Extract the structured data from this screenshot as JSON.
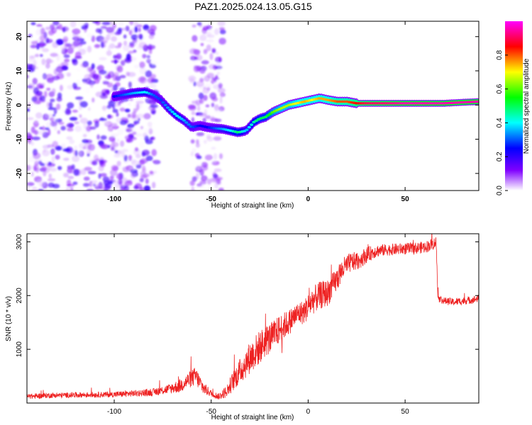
{
  "figure_title": "PAZ1.2025.024.13.05.G15",
  "chart_data": [
    {
      "type": "heatmap",
      "xlabel": "Height of straight line (km)",
      "ylabel": "Frequency (Hz)",
      "xlim": [
        -145,
        88
      ],
      "ylim": [
        -25,
        24.5
      ],
      "x_ticks": [
        -100,
        -50,
        0,
        50
      ],
      "x_tick_labels": [
        "-100",
        "-50",
        "0",
        "50"
      ],
      "y_ticks": [
        20,
        10,
        0,
        -10,
        -20
      ],
      "y_tick_labels": [
        "20",
        "10",
        "0",
        "-10",
        "-20"
      ],
      "colorbar": {
        "label": "Normalized spectral amplitude",
        "range": [
          0,
          1
        ],
        "ticks": [
          0.0,
          0.2,
          0.4,
          0.6,
          0.8
        ],
        "tick_labels": [
          "0.0",
          "0.2",
          "0.4",
          "0.6",
          "0.8"
        ],
        "colormap": [
          "#ffffff",
          "#8000ff",
          "#0000ff",
          "#00ffff",
          "#00ff00",
          "#ffff00",
          "#ff0000",
          "#ff00ff"
        ]
      },
      "ridge": {
        "x": [
          -100,
          -90,
          -84,
          -80,
          -76,
          -72,
          -68,
          -64,
          -60,
          -56,
          -52,
          -48,
          -44,
          -40,
          -36,
          -32,
          -28,
          -25,
          -22,
          -18,
          -14,
          -10,
          -6,
          -2,
          2,
          6,
          10,
          15,
          20,
          25,
          30,
          40,
          50,
          60,
          70,
          80,
          88
        ],
        "y": [
          2.5,
          3.5,
          3.8,
          3.0,
          1.5,
          -1.0,
          -3.0,
          -4.5,
          -6.5,
          -6.0,
          -6.5,
          -6.8,
          -7.0,
          -7.5,
          -8.0,
          -7.5,
          -5.0,
          -4.0,
          -3.5,
          -2.0,
          -1.0,
          0.0,
          0.5,
          1.0,
          1.5,
          2.0,
          1.5,
          1.0,
          1.0,
          0.5,
          0.5,
          0.5,
          0.5,
          0.5,
          0.5,
          0.8,
          1.0
        ],
        "amplitude": [
          0.25,
          0.35,
          0.4,
          0.3,
          0.28,
          0.35,
          0.4,
          0.35,
          0.3,
          0.25,
          0.25,
          0.3,
          0.35,
          0.4,
          0.5,
          0.35,
          0.45,
          0.5,
          0.5,
          0.6,
          0.65,
          0.65,
          0.7,
          0.75,
          0.7,
          0.75,
          0.75,
          0.8,
          0.8,
          0.85,
          0.9,
          0.92,
          0.95,
          0.95,
          0.95,
          0.95,
          0.95
        ]
      },
      "noise_regions": [
        {
          "x_range": [
            -145,
            -78
          ],
          "y_range": [
            -25,
            24.5
          ],
          "amplitude": 0.2
        },
        {
          "x_range": [
            -60,
            -44
          ],
          "y_range": [
            -25,
            24.5
          ],
          "amplitude": 0.15
        }
      ]
    },
    {
      "type": "line",
      "xlabel": "Height of straight line (km)",
      "ylabel": "SNR (10 * v/v)",
      "xlim": [
        -145,
        88
      ],
      "ylim": [
        0,
        3150
      ],
      "x_ticks": [
        -100,
        -50,
        0,
        50
      ],
      "x_tick_labels": [
        "-100",
        "-50",
        "0",
        "50"
      ],
      "y_ticks": [
        1000,
        2000,
        3000
      ],
      "y_tick_labels": [
        "1000",
        "2000",
        "3000"
      ],
      "series": [
        {
          "color": "#ee2222",
          "x": [
            -145,
            -135,
            -120,
            -100,
            -90,
            -80,
            -72,
            -66,
            -62,
            -58,
            -54,
            -50,
            -46,
            -42,
            -38,
            -34,
            -30,
            -26,
            -22,
            -18,
            -14,
            -10,
            -6,
            -2,
            2,
            6,
            10,
            14,
            18,
            22,
            26,
            30,
            35,
            40,
            45,
            50,
            55,
            60,
            64,
            66,
            67,
            70,
            75,
            80,
            85,
            88
          ],
          "y": [
            120,
            140,
            150,
            160,
            180,
            200,
            260,
            320,
            420,
            500,
            280,
            180,
            120,
            220,
            450,
            650,
            850,
            1000,
            1150,
            1250,
            1400,
            1500,
            1650,
            1700,
            1900,
            2000,
            2050,
            2250,
            2500,
            2620,
            2650,
            2750,
            2830,
            2850,
            2860,
            2870,
            2880,
            2900,
            2950,
            3000,
            1950,
            1900,
            1880,
            1900,
            1920,
            1950
          ],
          "noise_amplitude": [
            50,
            50,
            50,
            55,
            60,
            70,
            90,
            130,
            150,
            180,
            120,
            60,
            60,
            120,
            200,
            260,
            300,
            320,
            300,
            280,
            260,
            240,
            220,
            230,
            260,
            260,
            250,
            230,
            210,
            180,
            170,
            150,
            120,
            110,
            110,
            110,
            110,
            110,
            110,
            110,
            70,
            70,
            70,
            70,
            70,
            70
          ]
        }
      ]
    }
  ]
}
